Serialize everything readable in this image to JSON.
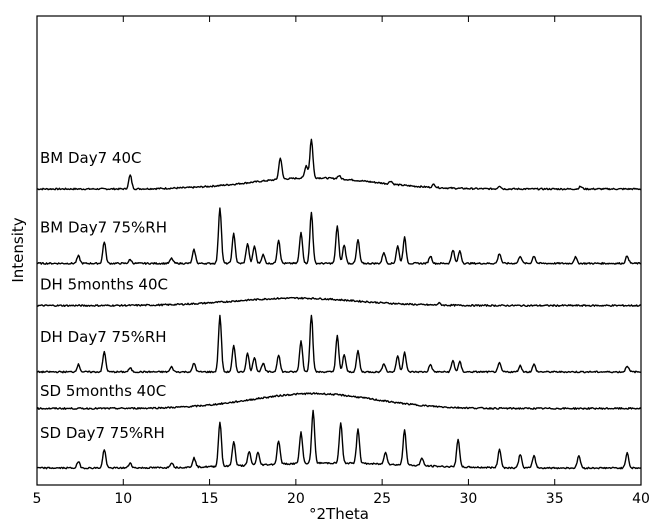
{
  "chart_data": {
    "type": "line",
    "title": "",
    "xlabel": "°2Theta",
    "ylabel": "Intensity",
    "xlim": [
      5,
      40
    ],
    "xticks": [
      5,
      10,
      15,
      20,
      25,
      30,
      35,
      40
    ],
    "grid": false,
    "legend": "none",
    "series": [
      {
        "name": "BM Day7 40C",
        "baseline": 4.5,
        "scale": 1.0,
        "halo": [
          {
            "c": 21,
            "w": 5,
            "h": 0.18
          }
        ],
        "peaks": [
          [
            10.4,
            0.22
          ],
          [
            19.1,
            0.35
          ],
          [
            20.9,
            0.62
          ],
          [
            20.6,
            0.2
          ],
          [
            22.5,
            0.05
          ],
          [
            25.5,
            0.05
          ],
          [
            28.0,
            0.05
          ],
          [
            31.8,
            0.05
          ],
          [
            36.5,
            0.04
          ]
        ]
      },
      {
        "name": "BM Day7 75%RH",
        "baseline": 3.3,
        "scale": 1.0,
        "halo": [],
        "peaks": [
          [
            7.4,
            0.12
          ],
          [
            8.9,
            0.35
          ],
          [
            10.4,
            0.06
          ],
          [
            12.8,
            0.08
          ],
          [
            14.1,
            0.22
          ],
          [
            15.6,
            0.9
          ],
          [
            16.4,
            0.48
          ],
          [
            17.2,
            0.32
          ],
          [
            17.6,
            0.28
          ],
          [
            18.1,
            0.14
          ],
          [
            19.0,
            0.38
          ],
          [
            20.3,
            0.5
          ],
          [
            20.9,
            0.82
          ],
          [
            22.4,
            0.6
          ],
          [
            22.8,
            0.3
          ],
          [
            23.6,
            0.38
          ],
          [
            25.1,
            0.18
          ],
          [
            25.9,
            0.28
          ],
          [
            26.3,
            0.42
          ],
          [
            27.8,
            0.12
          ],
          [
            29.1,
            0.22
          ],
          [
            29.5,
            0.2
          ],
          [
            31.8,
            0.16
          ],
          [
            33.0,
            0.12
          ],
          [
            33.8,
            0.12
          ],
          [
            36.2,
            0.1
          ],
          [
            39.2,
            0.12
          ]
        ]
      },
      {
        "name": "DH 5months 40C",
        "baseline": 2.62,
        "scale": 1.0,
        "halo": [
          {
            "c": 20,
            "w": 5,
            "h": 0.12
          }
        ],
        "peaks": [
          [
            28.3,
            0.03
          ]
        ]
      },
      {
        "name": "DH Day7 75%RH",
        "baseline": 1.55,
        "scale": 1.0,
        "halo": [],
        "peaks": [
          [
            7.4,
            0.12
          ],
          [
            8.9,
            0.32
          ],
          [
            10.4,
            0.06
          ],
          [
            12.8,
            0.08
          ],
          [
            14.1,
            0.14
          ],
          [
            15.6,
            0.9
          ],
          [
            16.4,
            0.42
          ],
          [
            17.2,
            0.3
          ],
          [
            17.6,
            0.24
          ],
          [
            18.1,
            0.14
          ],
          [
            19.0,
            0.28
          ],
          [
            20.3,
            0.5
          ],
          [
            20.9,
            0.92
          ],
          [
            22.4,
            0.58
          ],
          [
            22.8,
            0.28
          ],
          [
            23.6,
            0.34
          ],
          [
            25.1,
            0.14
          ],
          [
            25.9,
            0.26
          ],
          [
            26.3,
            0.32
          ],
          [
            27.8,
            0.12
          ],
          [
            29.1,
            0.18
          ],
          [
            29.5,
            0.16
          ],
          [
            31.8,
            0.14
          ],
          [
            33.0,
            0.1
          ],
          [
            33.8,
            0.12
          ],
          [
            39.2,
            0.1
          ]
        ]
      },
      {
        "name": "SD 5months 40C",
        "baseline": 0.96,
        "scale": 1.0,
        "halo": [
          {
            "c": 21,
            "w": 5,
            "h": 0.24
          }
        ],
        "peaks": []
      },
      {
        "name": "SD Day7 75%RH",
        "baseline": 0.0,
        "scale": 1.0,
        "halo": [
          {
            "c": 22,
            "w": 6,
            "h": 0.08
          }
        ],
        "peaks": [
          [
            7.4,
            0.1
          ],
          [
            8.9,
            0.3
          ],
          [
            10.4,
            0.08
          ],
          [
            12.8,
            0.08
          ],
          [
            14.1,
            0.15
          ],
          [
            15.6,
            0.72
          ],
          [
            16.4,
            0.4
          ],
          [
            17.3,
            0.22
          ],
          [
            17.8,
            0.2
          ],
          [
            19.0,
            0.38
          ],
          [
            20.3,
            0.5
          ],
          [
            21.0,
            0.85
          ],
          [
            22.6,
            0.65
          ],
          [
            23.6,
            0.56
          ],
          [
            25.2,
            0.2
          ],
          [
            26.3,
            0.58
          ],
          [
            27.3,
            0.12
          ],
          [
            29.4,
            0.45
          ],
          [
            31.8,
            0.3
          ],
          [
            33.0,
            0.22
          ],
          [
            33.8,
            0.2
          ],
          [
            36.4,
            0.2
          ],
          [
            39.2,
            0.25
          ]
        ]
      }
    ]
  }
}
